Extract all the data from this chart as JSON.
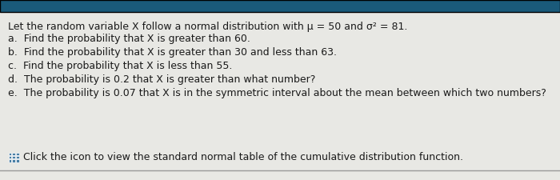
{
  "title_line": "Let the random variable X follow a normal distribution with μ = 50 and σ² = 81.",
  "lines": [
    "a.  Find the probability that X is greater than 60.",
    "b.  Find the probability that X is greater than 30 and less than 63.",
    "c.  Find the probability that X is less than 55.",
    "d.  The probability is 0.2 that X is greater than what number?",
    "e.  The probability is 0.07 that X is in the symmetric interval about the mean between which two numbers?"
  ],
  "footer": "Click the icon to view the standard normal table of the cumulative distribution function.",
  "bg_color": "#e8e8e4",
  "content_bg": "#f0efeb",
  "top_bar_color": "#1a5a7a",
  "divider_color": "#999999",
  "text_color": "#1a1a1a",
  "icon_color": "#4a7fa5",
  "font_size": 9.0,
  "title_font_size": 9.0
}
